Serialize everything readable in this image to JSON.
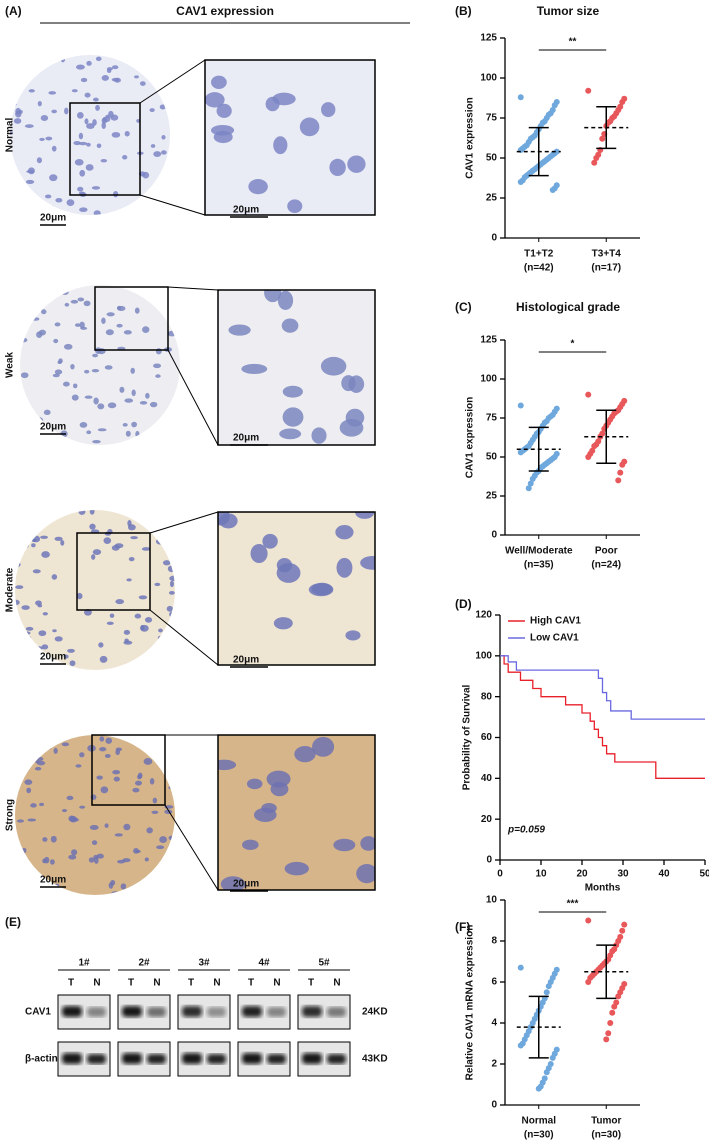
{
  "panel_a": {
    "label": "(A)",
    "title": "CAV1 expression",
    "rows": [
      {
        "label": "Normal",
        "scale_left": "20μm",
        "scale_right": "20μm"
      },
      {
        "label": "Weak",
        "scale_left": "20μm",
        "scale_right": "20μm"
      },
      {
        "label": "Moderate",
        "scale_left": "20μm",
        "scale_right": "20μm"
      },
      {
        "label": "Strong",
        "scale_left": "20μm",
        "scale_right": "20μm"
      }
    ]
  },
  "panel_e": {
    "label": "(E)",
    "samples": [
      "1#",
      "2#",
      "3#",
      "4#",
      "5#"
    ],
    "lanes": [
      "T",
      "N"
    ],
    "rows": [
      {
        "protein": "CAV1",
        "size": "24KD"
      },
      {
        "protein": "β-actin",
        "size": "43KD"
      }
    ]
  },
  "chart_data": [
    {
      "type": "dot",
      "panel": "(B)",
      "title": "Tumor size",
      "y_label": "CAV1 expression",
      "categories": [
        "T1+T2",
        "T3+T4"
      ],
      "category_counts": [
        "(n=42)",
        "(n=17)"
      ],
      "significance": "**",
      "ylim": [
        0,
        125
      ],
      "yticks": [
        0,
        25,
        50,
        75,
        100,
        125
      ],
      "groups": [
        {
          "color": "#6fa8dc",
          "mean": 54,
          "sd": 15,
          "points": [
            88,
            85,
            83,
            80,
            78,
            77,
            75,
            73,
            72,
            70,
            68,
            66,
            64,
            63,
            62,
            60,
            58,
            57,
            56,
            55,
            54,
            53,
            52,
            51,
            50,
            49,
            48,
            47,
            46,
            45,
            44,
            43,
            42,
            41,
            40,
            39,
            38,
            36,
            35,
            33,
            31,
            30
          ]
        },
        {
          "color": "#e8575a",
          "mean": 69,
          "sd": 13,
          "points": [
            92,
            87,
            85,
            82,
            80,
            78,
            76,
            75,
            73,
            72,
            70,
            65,
            62,
            55,
            52,
            50,
            47
          ]
        }
      ]
    },
    {
      "type": "dot",
      "panel": "(C)",
      "title": "Histological grade",
      "y_label": "CAV1 expression",
      "categories": [
        "Well/Moderate",
        "Poor"
      ],
      "category_counts": [
        "(n=35)",
        "(n=24)"
      ],
      "significance": "*",
      "ylim": [
        0,
        125
      ],
      "yticks": [
        0,
        25,
        50,
        75,
        100,
        125
      ],
      "groups": [
        {
          "color": "#6fa8dc",
          "mean": 55,
          "sd": 14,
          "points": [
            83,
            81,
            79,
            77,
            76,
            75,
            73,
            72,
            70,
            68,
            66,
            65,
            63,
            61,
            59,
            57,
            56,
            55,
            54,
            53,
            52,
            50,
            49,
            48,
            47,
            46,
            45,
            44,
            43,
            41,
            40,
            38,
            36,
            33,
            30
          ]
        },
        {
          "color": "#e8575a",
          "mean": 63,
          "sd": 17,
          "points": [
            90,
            86,
            84,
            82,
            80,
            79,
            78,
            76,
            74,
            72,
            70,
            68,
            65,
            63,
            60,
            58,
            57,
            54,
            52,
            50,
            47,
            45,
            40,
            35
          ]
        }
      ]
    },
    {
      "type": "line",
      "panel": "(D)",
      "x_label": "Months",
      "y_label": "Probability of Survival",
      "annotation": "p=0.059",
      "xlim": [
        0,
        50
      ],
      "xticks": [
        0,
        10,
        20,
        30,
        40,
        50
      ],
      "ylim": [
        0,
        120
      ],
      "yticks": [
        0,
        20,
        40,
        60,
        80,
        100,
        120
      ],
      "legend": "top-left",
      "series": [
        {
          "name": "High CAV1",
          "color": "#e8202a",
          "x": [
            0,
            1,
            1,
            2,
            2,
            5,
            5,
            8,
            8,
            10,
            10,
            16,
            16,
            20,
            20,
            22,
            22,
            23,
            23,
            24,
            24,
            25,
            25,
            26,
            26,
            28,
            28,
            38,
            38,
            50
          ],
          "values": [
            100,
            100,
            96,
            96,
            92,
            92,
            88,
            88,
            84,
            84,
            80,
            80,
            76,
            76,
            72,
            72,
            68,
            68,
            64,
            64,
            60,
            60,
            56,
            56,
            52,
            52,
            48,
            48,
            40,
            40
          ]
        },
        {
          "name": "Low CAV1",
          "color": "#6a6ae0",
          "x": [
            0,
            2,
            2,
            4,
            4,
            24,
            24,
            25,
            25,
            26,
            26,
            27,
            27,
            32,
            32,
            50
          ],
          "values": [
            100,
            100,
            97,
            97,
            93,
            93,
            89,
            89,
            82,
            82,
            78,
            78,
            73,
            73,
            69,
            69
          ]
        }
      ]
    },
    {
      "type": "dot",
      "panel": "(F)",
      "y_label": "Relative CAV1 mRNA expression",
      "categories": [
        "Normal",
        "Tumor"
      ],
      "category_counts": [
        "(n=30)",
        "(n=30)"
      ],
      "significance": "***",
      "ylim": [
        0,
        10
      ],
      "yticks": [
        0,
        2,
        4,
        6,
        8,
        10
      ],
      "groups": [
        {
          "color": "#6fa8dc",
          "mean": 3.8,
          "sd": 1.5,
          "points": [
            6.7,
            6.6,
            6.4,
            6.2,
            6.0,
            5.8,
            5.5,
            5.2,
            5.0,
            4.8,
            4.6,
            4.4,
            4.2,
            4.0,
            3.8,
            3.6,
            3.4,
            3.2,
            3.0,
            2.9,
            2.7,
            2.5,
            2.3,
            2.0,
            1.8,
            1.6,
            1.3,
            1.1,
            0.9,
            0.8
          ]
        },
        {
          "color": "#e8575a",
          "mean": 6.5,
          "sd": 1.3,
          "points": [
            9.0,
            8.8,
            8.5,
            8.2,
            8.0,
            7.8,
            7.6,
            7.5,
            7.3,
            7.1,
            7.0,
            6.9,
            6.8,
            6.7,
            6.6,
            6.5,
            6.4,
            6.3,
            6.2,
            6.0,
            5.9,
            5.7,
            5.5,
            5.3,
            5.0,
            4.8,
            4.5,
            4.0,
            3.5,
            3.2
          ]
        }
      ]
    }
  ]
}
